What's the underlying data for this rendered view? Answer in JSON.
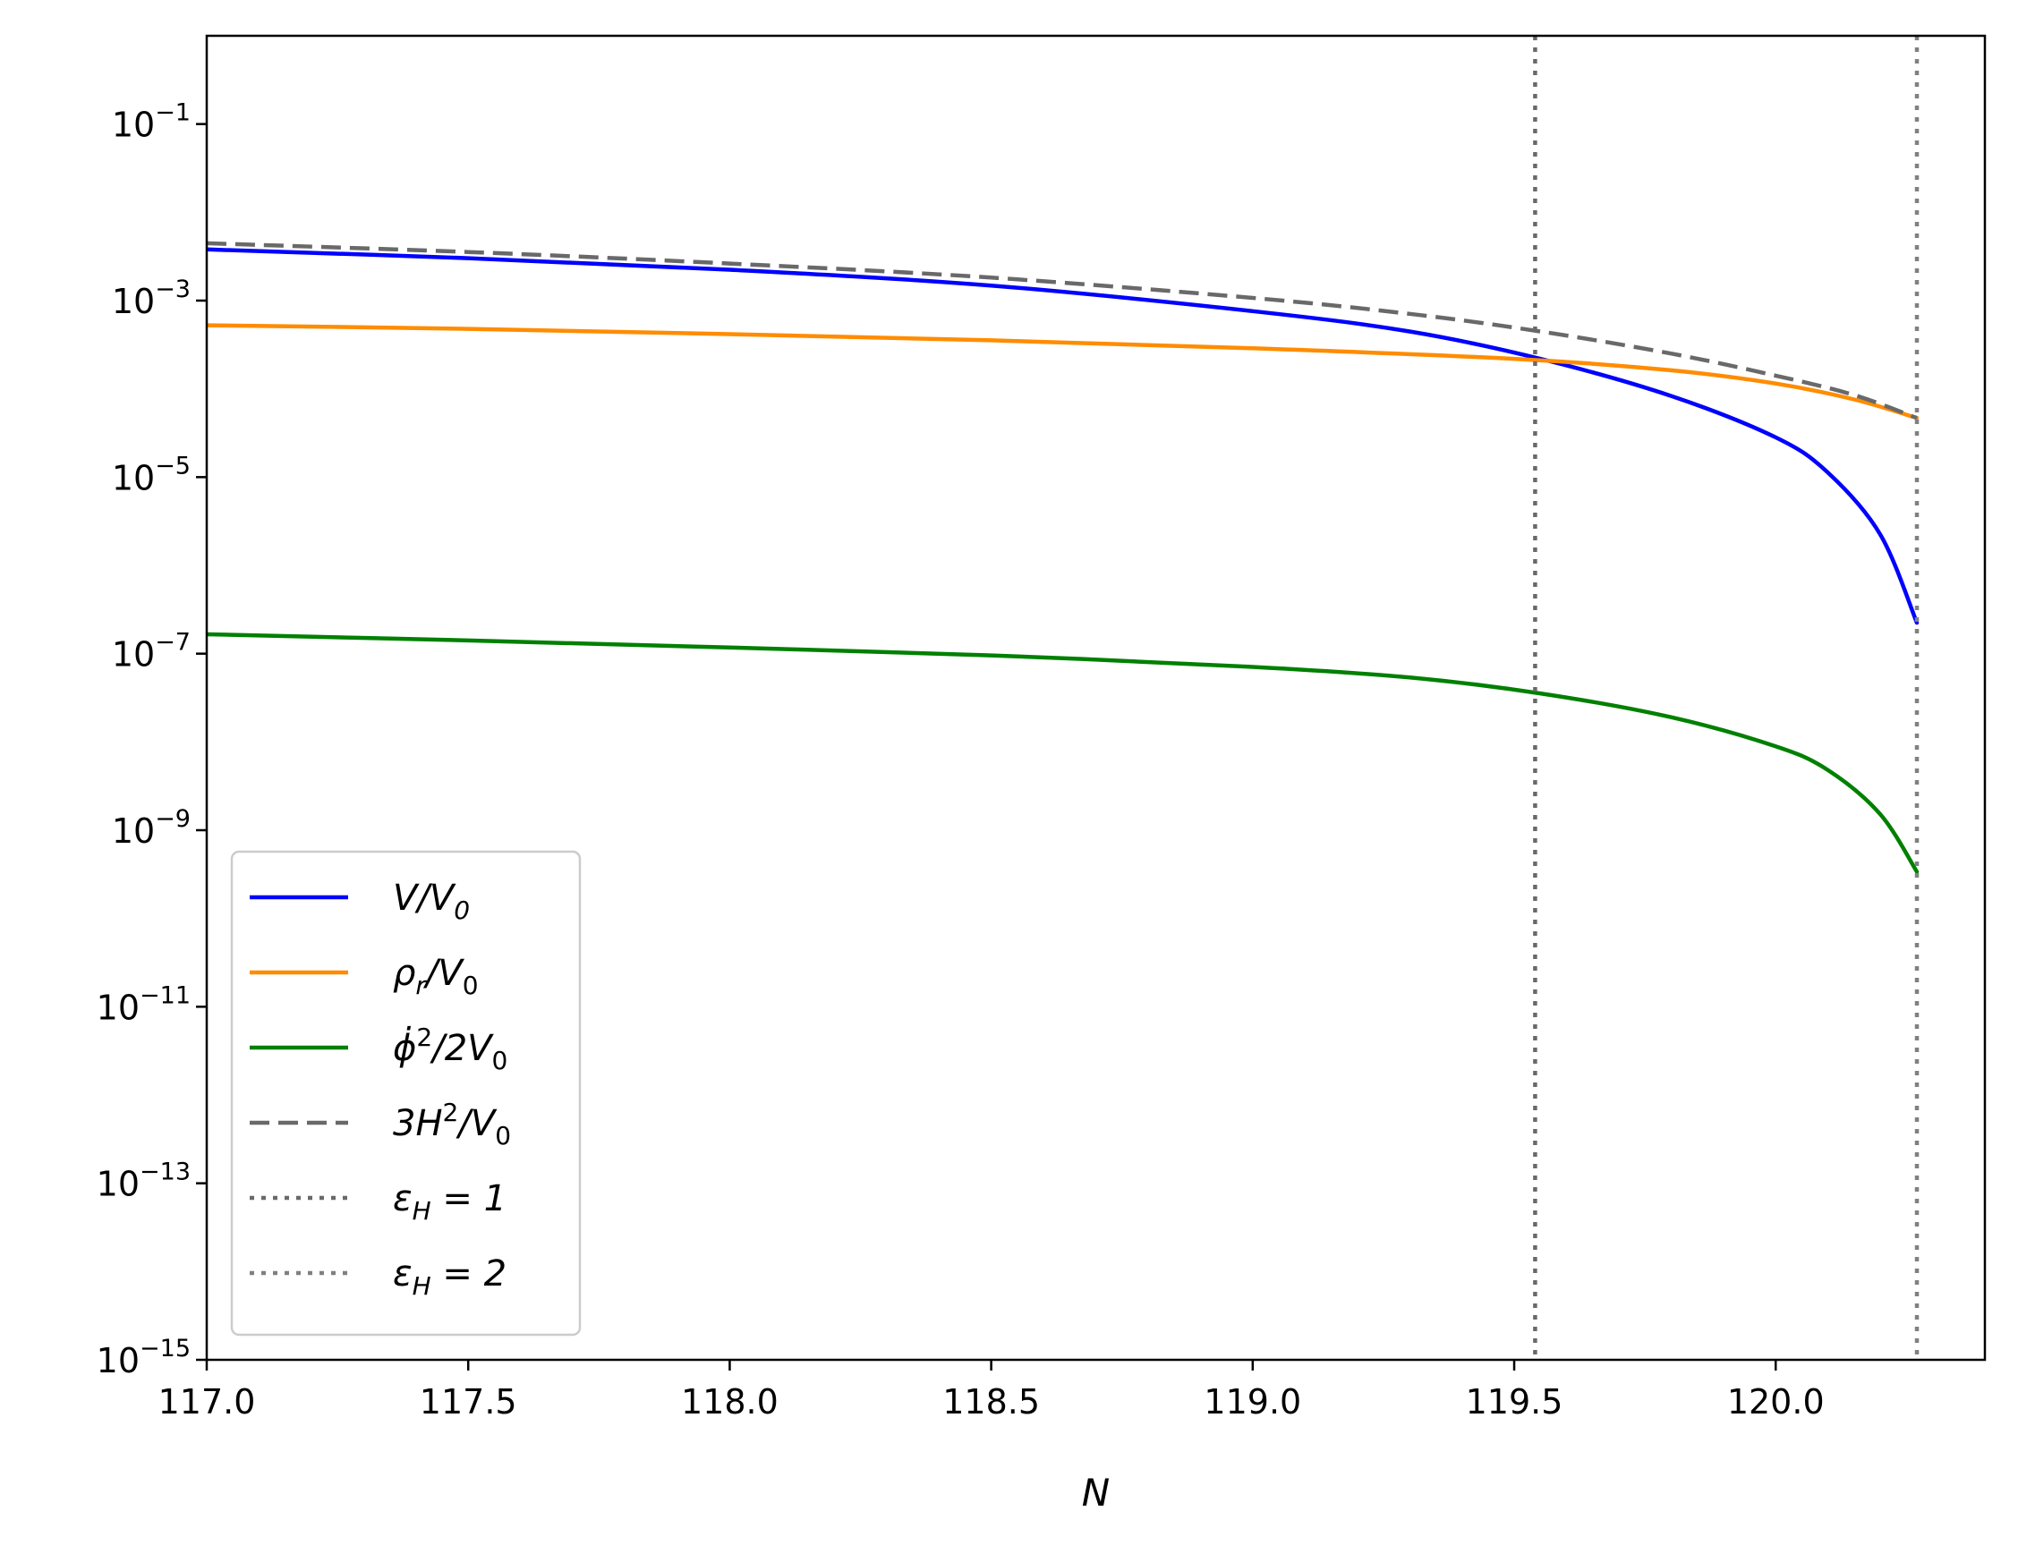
{
  "chart_data": {
    "type": "line",
    "xlabel": "N",
    "ylabel": "",
    "xlim": [
      117.0,
      120.4
    ],
    "ylim_exponent": [
      -15,
      0
    ],
    "yscale": "log",
    "grid": false,
    "legend_placement": "lower-left",
    "x_ticks": [
      "117.0",
      "117.5",
      "118.0",
      "118.5",
      "119.0",
      "119.5",
      "120.0"
    ],
    "y_ticks": [
      {
        "base": "10",
        "exp": "−1"
      },
      {
        "base": "10",
        "exp": "−3"
      },
      {
        "base": "10",
        "exp": "−5"
      },
      {
        "base": "10",
        "exp": "−7"
      },
      {
        "base": "10",
        "exp": "−9"
      },
      {
        "base": "10",
        "exp": "−11"
      },
      {
        "base": "10",
        "exp": "−13"
      },
      {
        "base": "10",
        "exp": "−15"
      }
    ],
    "series": [
      {
        "name": "V/V0",
        "color": "#0000ff",
        "style": "solid",
        "x": [
          117.0,
          117.5,
          118.0,
          118.5,
          119.0,
          119.3,
          119.55,
          119.8,
          120.0,
          120.1,
          120.2,
          120.27
        ],
        "log10_y": [
          -2.42,
          -2.52,
          -2.65,
          -2.83,
          -3.12,
          -3.35,
          -3.66,
          -4.08,
          -4.55,
          -4.95,
          -5.65,
          -6.65
        ]
      },
      {
        "name": "ρr/V0",
        "color": "#ff8c00",
        "style": "solid",
        "x": [
          117.0,
          117.5,
          118.0,
          118.5,
          119.0,
          119.5,
          119.8,
          120.0,
          120.15,
          120.27
        ],
        "log10_y": [
          -3.28,
          -3.32,
          -3.38,
          -3.45,
          -3.54,
          -3.66,
          -3.79,
          -3.94,
          -4.12,
          -4.33
        ]
      },
      {
        "name": "φ̇²/2V0",
        "color": "#008000",
        "style": "solid",
        "x": [
          117.0,
          117.5,
          118.0,
          118.5,
          119.0,
          119.3,
          119.55,
          119.8,
          120.0,
          120.1,
          120.2,
          120.27
        ],
        "log10_y": [
          -6.78,
          -6.85,
          -6.93,
          -7.02,
          -7.15,
          -7.27,
          -7.45,
          -7.72,
          -8.05,
          -8.32,
          -8.82,
          -9.47
        ]
      },
      {
        "name": "3H²/V0",
        "color": "#696969",
        "style": "dashed",
        "x": [
          117.0,
          117.5,
          118.0,
          118.5,
          119.0,
          119.3,
          119.55,
          119.8,
          120.0,
          120.15,
          120.27
        ],
        "log10_y": [
          -2.35,
          -2.45,
          -2.58,
          -2.74,
          -2.97,
          -3.15,
          -3.35,
          -3.6,
          -3.85,
          -4.07,
          -4.33
        ]
      }
    ],
    "vertical_lines": [
      {
        "name": "εH = 1",
        "x": 119.54,
        "color": "#696969",
        "style": "dotted"
      },
      {
        "name": "εH = 2",
        "x": 120.27,
        "color": "#808080",
        "style": "dotted"
      }
    ],
    "legend": [
      {
        "label_main": "V/V",
        "label_sub": "0",
        "color": "#0000ff",
        "style": "solid"
      },
      {
        "label_main": "ρ",
        "label_sub": "r",
        "label_tail": "/V",
        "label_sub2": "0",
        "color": "#ff8c00",
        "style": "solid"
      },
      {
        "label_main": "ϕ̇",
        "label_sup": "2",
        "label_tail": "/2V",
        "label_sub2": "0",
        "color": "#008000",
        "style": "solid"
      },
      {
        "label_main": "3H",
        "label_sup": "2",
        "label_tail": "/V",
        "label_sub2": "0",
        "color": "#696969",
        "style": "dashed"
      },
      {
        "label_main": "ε",
        "label_sub": "H",
        "label_tail": " = 1",
        "color": "#696969",
        "style": "dotted"
      },
      {
        "label_main": "ε",
        "label_sub": "H",
        "label_tail": " = 2",
        "color": "#808080",
        "style": "dotted"
      }
    ]
  }
}
